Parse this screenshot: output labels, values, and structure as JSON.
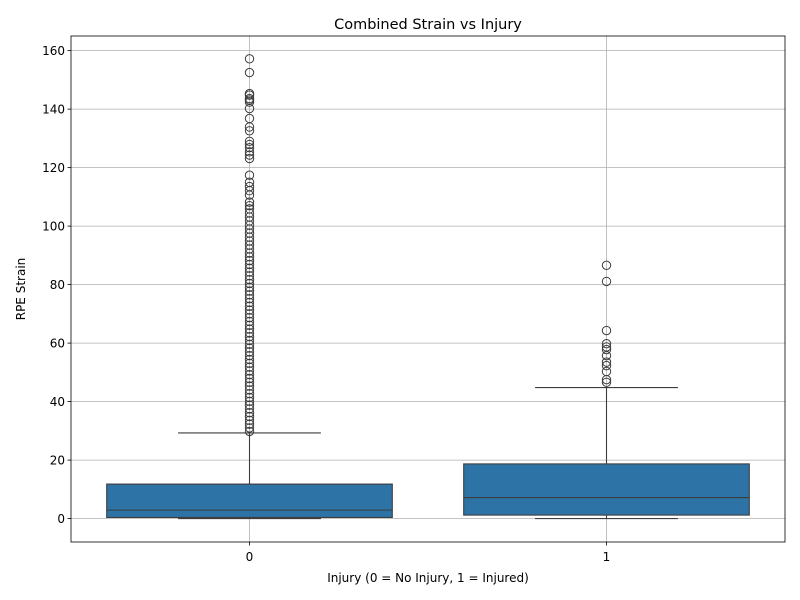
{
  "chart_data": {
    "type": "box",
    "title": "Combined Strain vs Injury",
    "xlabel": "Injury (0 = No Injury, 1 = Injured)",
    "ylabel": "RPE Strain",
    "ylim": [
      -8,
      165
    ],
    "yticks": [
      0,
      20,
      40,
      60,
      80,
      100,
      120,
      140,
      160
    ],
    "grid": true,
    "box_color": "#2d73a6",
    "categories": [
      "0",
      "1"
    ],
    "boxes": [
      {
        "category": "0",
        "whisker_low": 0,
        "q1": 0.4,
        "median": 2.9,
        "q3": 11.8,
        "whisker_high": 29.3,
        "outliers": [
          157.2,
          152.5,
          145.3,
          144.8,
          143.6,
          143.1,
          142.4,
          140.2,
          136.8,
          133.9,
          132.6,
          129.0,
          127.9,
          126.8,
          125.4,
          124.3,
          123.1,
          117.4,
          115.0,
          113.5,
          112.1,
          110.6,
          108.2,
          107.0,
          105.9,
          104.5,
          103.1,
          101.8,
          100.3,
          99.0,
          97.6,
          96.2,
          94.9,
          93.5,
          92.2,
          90.8,
          89.5,
          88.2,
          86.9,
          85.6,
          84.3,
          83.0,
          81.7,
          80.4,
          79.1,
          77.8,
          76.5,
          75.2,
          73.9,
          72.6,
          71.3,
          70.0,
          68.7,
          67.4,
          66.1,
          64.8,
          63.5,
          62.2,
          60.9,
          59.6,
          58.3,
          57.0,
          55.7,
          54.4,
          53.1,
          51.8,
          50.5,
          49.2,
          47.9,
          46.6,
          45.3,
          44.0,
          42.7,
          41.4,
          40.1,
          38.8,
          37.5,
          36.2,
          34.9,
          33.6,
          32.3,
          31.0,
          29.8
        ]
      },
      {
        "category": "1",
        "whisker_low": 0,
        "q1": 1.2,
        "median": 7.2,
        "q3": 18.7,
        "whisker_high": 44.8,
        "outliers": [
          86.6,
          81.1,
          64.3,
          59.8,
          58.7,
          57.8,
          55.7,
          53.5,
          52.3,
          50.3,
          47.5,
          46.6
        ]
      }
    ]
  }
}
